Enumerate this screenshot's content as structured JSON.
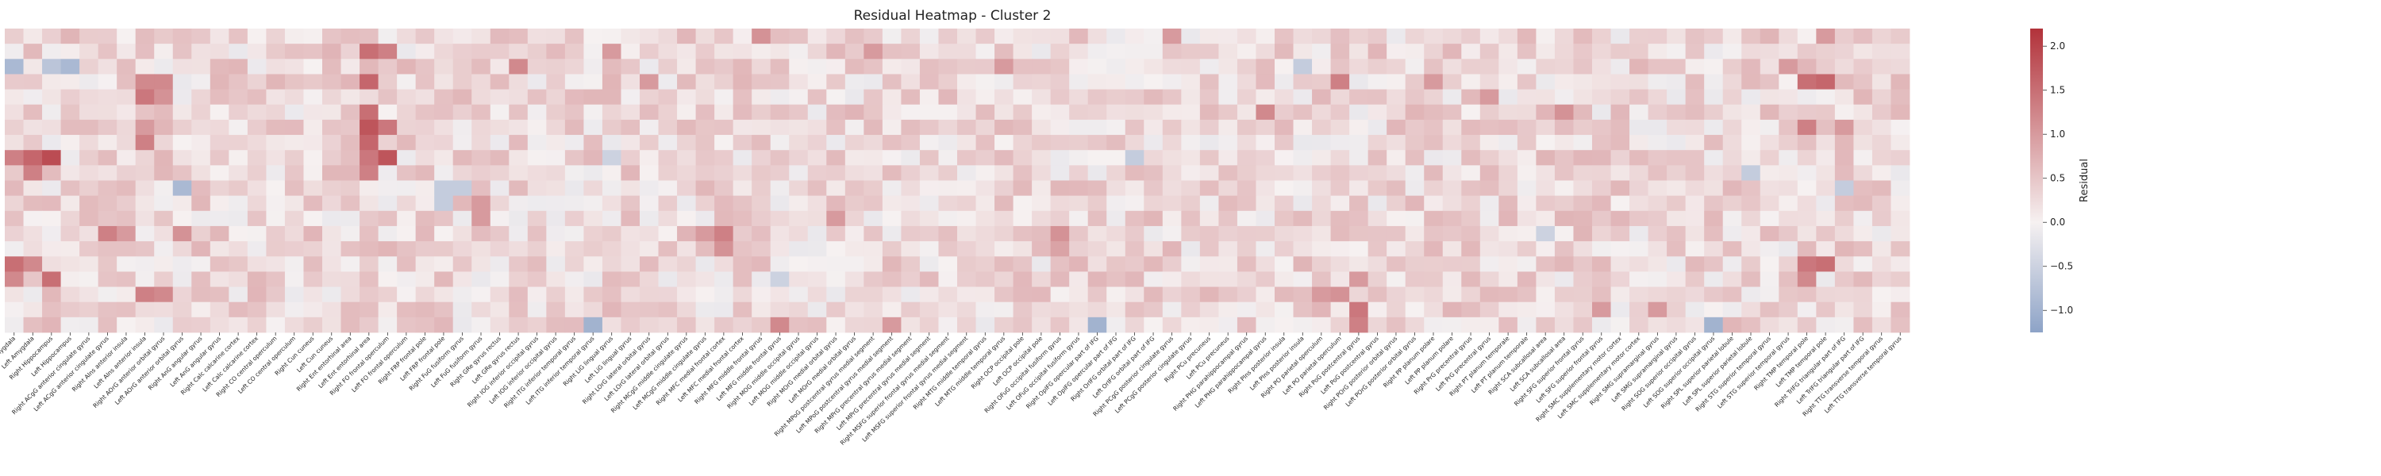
{
  "chart_data": {
    "type": "heatmap",
    "title": "Residual Heatmap - Cluster 2",
    "colorbar_label": "Residual",
    "colorbar_range": [
      -1.25,
      2.2
    ],
    "colorbar_ticks": [
      -1.0,
      -0.5,
      0.0,
      0.5,
      1.0,
      1.5,
      2.0
    ],
    "colormap": {
      "low": "#8da3c7",
      "mid": "#f6f1f1",
      "high": "#b2323a"
    },
    "num_rows": 20,
    "columns": [
      "Right Amygdala",
      "Left Amygdala",
      "Right Hippocampus",
      "Left Hippocampus",
      "Right ACgG anterior cingulate gyrus",
      "Left ACgG anterior cingulate gyrus",
      "Right AIns anterior insula",
      "Left AIns anterior insula",
      "Right AOrG anterior orbital gyrus",
      "Left AOrG anterior orbital gyrus",
      "Right AnG angular gyrus",
      "Left AnG angular gyrus",
      "Right Calc calcarine cortex",
      "Left Calc calcarine cortex",
      "Right CO central operculum",
      "Left CO central operculum",
      "Right Cun cuneus",
      "Left Cun cuneus",
      "Right Ent entorhinal area",
      "Left Ent entorhinal area",
      "Right FO frontal operculum",
      "Left FO frontal operculum",
      "Right FRP frontal pole",
      "Left FRP frontal pole",
      "Right FuG fusiform gyrus",
      "Left FuG fusiform gyrus",
      "Right GRe gyrus rectus",
      "Left GRe gyrus rectus",
      "Right IOG inferior occipital gyrus",
      "Left IOG inferior occipital gyrus",
      "Right ITG inferior temporal gyrus",
      "Left ITG inferior temporal gyrus",
      "Right LiG lingual gyrus",
      "Left LiG lingual gyrus",
      "Right LOrG lateral orbital gyrus",
      "Left LOrG lateral orbital gyrus",
      "Right MCgG middle cingulate gyrus",
      "Left MCgG middle cingulate gyrus",
      "Right MFC medial frontal cortex",
      "Left MFC medial frontal cortex",
      "Right MFG middle frontal gyrus",
      "Left MFG middle frontal gyrus",
      "Right MOG middle occipital gyrus",
      "Left MOG middle occipital gyrus",
      "Right MOrG medial orbital gyrus",
      "Left MOrG medial orbital gyrus",
      "Right MPoG postcentral gyrus medial segment",
      "Left MPoG postcentral gyrus medial segment",
      "Right MPrG precentral gyrus medial segment",
      "Left MPrG precentral gyrus medial segment",
      "Right MSFG superior frontal gyrus medial segment",
      "Left MSFG superior frontal gyrus medial segment",
      "Right MTG middle temporal gyrus",
      "Left MTG middle temporal gyrus",
      "Right OCP occipital pole",
      "Left OCP occipital pole",
      "Right OFuG occipital fusiform gyrus",
      "Left OFuG occipital fusiform gyrus",
      "Right OpIFG opercular part of IFG",
      "Left OpIFG opercular part of IFG",
      "Right OrIFG orbital part of IFG",
      "Left OrIFG orbital part of IFG",
      "Right PCgG posterior cingulate gyrus",
      "Left PCgG posterior cingulate gyrus",
      "Right PCu precuneus",
      "Left PCu precuneus",
      "Right PHG parahippocampal gyrus",
      "Left PHG parahippocampal gyrus",
      "Right PIns posterior insula",
      "Left PIns posterior insula",
      "Right PO parietal operculum",
      "Left PO parietal operculum",
      "Right PoG postcentral gyrus",
      "Left PoG postcentral gyrus",
      "Right POrG posterior orbital gyrus",
      "Left POrG posterior orbital gyrus",
      "Right PP planum polare",
      "Left PP planum polare",
      "Right PrG precentral gyrus",
      "Left PrG precentral gyrus",
      "Right PT planum temporale",
      "Left PT planum temporale",
      "Right SCA subcallosal area",
      "Left SCA subcallosal area",
      "Right SFG superior frontal gyrus",
      "Left SFG superior frontal gyrus",
      "Right SMC supplementary motor cortex",
      "Left SMC supplementary motor cortex",
      "Right SMG supramarginal gyrus",
      "Left SMG supramarginal gyrus",
      "Right SOG superior occipital gyrus",
      "Left SOG superior occipital gyrus",
      "Right SPL superior parietal lobule",
      "Left SPL superior parietal lobule",
      "Right STG superior temporal gyrus",
      "Left STG superior temporal gyrus",
      "Right TMP temporal pole",
      "Left TMP temporal pole",
      "Right TrIFG triangular part of IFG",
      "Left TrIFG triangular part of IFG",
      "Right TTG transverse temporal gyrus",
      "Left TTG transverse temporal gyrus"
    ],
    "hot_cells": [
      {
        "col": 0,
        "row": 2,
        "v": -0.9
      },
      {
        "col": 2,
        "row": 2,
        "v": -0.7
      },
      {
        "col": 3,
        "row": 2,
        "v": -0.9
      },
      {
        "col": 1,
        "row": 8,
        "v": 1.6
      },
      {
        "col": 2,
        "row": 8,
        "v": 1.9
      },
      {
        "col": 0,
        "row": 8,
        "v": 1.3
      },
      {
        "col": 1,
        "row": 9,
        "v": 1.3
      },
      {
        "col": 0,
        "row": 15,
        "v": 1.5
      },
      {
        "col": 1,
        "row": 15,
        "v": 1.2
      },
      {
        "col": 2,
        "row": 16,
        "v": 1.5
      },
      {
        "col": 0,
        "row": 16,
        "v": 1.2
      },
      {
        "col": 7,
        "row": 3,
        "v": 1.2
      },
      {
        "col": 7,
        "row": 4,
        "v": 1.4
      },
      {
        "col": 8,
        "row": 3,
        "v": 1.2
      },
      {
        "col": 8,
        "row": 4,
        "v": 1.1
      },
      {
        "col": 7,
        "row": 6,
        "v": 1.0
      },
      {
        "col": 7,
        "row": 7,
        "v": 1.3
      },
      {
        "col": 7,
        "row": 17,
        "v": 1.3
      },
      {
        "col": 8,
        "row": 17,
        "v": 1.2
      },
      {
        "col": 5,
        "row": 13,
        "v": 1.3
      },
      {
        "col": 6,
        "row": 13,
        "v": 1.0
      },
      {
        "col": 9,
        "row": 13,
        "v": 1.1
      },
      {
        "col": 9,
        "row": 10,
        "v": -0.9
      },
      {
        "col": 19,
        "row": 1,
        "v": 1.5
      },
      {
        "col": 20,
        "row": 1,
        "v": 1.3
      },
      {
        "col": 19,
        "row": 3,
        "v": 1.6
      },
      {
        "col": 19,
        "row": 5,
        "v": 1.5
      },
      {
        "col": 19,
        "row": 6,
        "v": 1.8
      },
      {
        "col": 19,
        "row": 7,
        "v": 1.6
      },
      {
        "col": 20,
        "row": 6,
        "v": 1.4
      },
      {
        "col": 20,
        "row": 8,
        "v": 1.8
      },
      {
        "col": 19,
        "row": 8,
        "v": 1.4
      },
      {
        "col": 19,
        "row": 9,
        "v": 1.3
      },
      {
        "col": 27,
        "row": 2,
        "v": 1.2
      },
      {
        "col": 25,
        "row": 11,
        "v": 1.0
      },
      {
        "col": 25,
        "row": 12,
        "v": 1.0
      },
      {
        "col": 32,
        "row": 1,
        "v": 1.0
      },
      {
        "col": 23,
        "row": 10,
        "v": -0.6
      },
      {
        "col": 24,
        "row": 10,
        "v": -0.6
      },
      {
        "col": 23,
        "row": 11,
        "v": -0.6
      },
      {
        "col": 31,
        "row": 19,
        "v": -1.0
      },
      {
        "col": 34,
        "row": 3,
        "v": 1.0
      },
      {
        "col": 32,
        "row": 8,
        "v": -0.5
      },
      {
        "col": 38,
        "row": 13,
        "v": 1.3
      },
      {
        "col": 38,
        "row": 14,
        "v": 1.1
      },
      {
        "col": 37,
        "row": 13,
        "v": 1.0
      },
      {
        "col": 41,
        "row": 19,
        "v": 1.2
      },
      {
        "col": 40,
        "row": 0,
        "v": 1.1
      },
      {
        "col": 46,
        "row": 1,
        "v": 1.0
      },
      {
        "col": 44,
        "row": 12,
        "v": 1.0
      },
      {
        "col": 41,
        "row": 16,
        "v": -0.5
      },
      {
        "col": 47,
        "row": 19,
        "v": 1.0
      },
      {
        "col": 53,
        "row": 2,
        "v": 1.0
      },
      {
        "col": 56,
        "row": 13,
        "v": 1.1
      },
      {
        "col": 56,
        "row": 14,
        "v": 0.9
      },
      {
        "col": 58,
        "row": 19,
        "v": -1.0
      },
      {
        "col": 60,
        "row": 8,
        "v": -0.6
      },
      {
        "col": 62,
        "row": 0,
        "v": 1.0
      },
      {
        "col": 67,
        "row": 5,
        "v": 1.2
      },
      {
        "col": 69,
        "row": 2,
        "v": -0.6
      },
      {
        "col": 71,
        "row": 3,
        "v": 1.3
      },
      {
        "col": 71,
        "row": 17,
        "v": 1.1
      },
      {
        "col": 72,
        "row": 18,
        "v": 1.4
      },
      {
        "col": 72,
        "row": 19,
        "v": 1.3
      },
      {
        "col": 72,
        "row": 16,
        "v": 1.0
      },
      {
        "col": 70,
        "row": 17,
        "v": 1.0
      },
      {
        "col": 76,
        "row": 3,
        "v": 1.0
      },
      {
        "col": 79,
        "row": 4,
        "v": 1.0
      },
      {
        "col": 83,
        "row": 5,
        "v": 1.1
      },
      {
        "col": 82,
        "row": 13,
        "v": -0.5
      },
      {
        "col": 85,
        "row": 18,
        "v": 1.0
      },
      {
        "col": 88,
        "row": 18,
        "v": 1.0
      },
      {
        "col": 91,
        "row": 19,
        "v": -1.0
      },
      {
        "col": 93,
        "row": 9,
        "v": -0.6
      },
      {
        "col": 95,
        "row": 2,
        "v": 1.0
      },
      {
        "col": 96,
        "row": 3,
        "v": 1.5
      },
      {
        "col": 97,
        "row": 3,
        "v": 1.6
      },
      {
        "col": 96,
        "row": 6,
        "v": 1.3
      },
      {
        "col": 96,
        "row": 15,
        "v": 1.4
      },
      {
        "col": 96,
        "row": 16,
        "v": 1.2
      },
      {
        "col": 97,
        "row": 15,
        "v": 1.5
      },
      {
        "col": 98,
        "row": 6,
        "v": 1.0
      },
      {
        "col": 98,
        "row": 10,
        "v": -0.6
      },
      {
        "col": 97,
        "row": 0,
        "v": 1.0
      }
    ],
    "grid": false
  }
}
